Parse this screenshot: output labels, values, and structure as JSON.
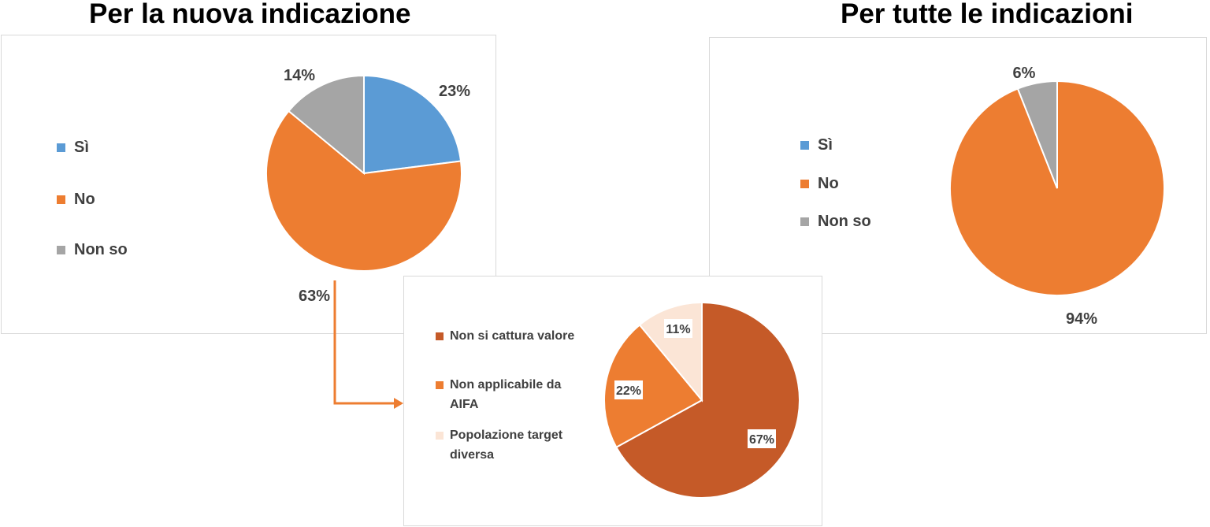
{
  "titles": {
    "left": "Per la nuova indicazione",
    "right": "Per tutte le indicazioni"
  },
  "chart_data": [
    {
      "type": "pie",
      "title": "Per la nuova indicazione",
      "categories": [
        "Sì",
        "No",
        "Non so"
      ],
      "values": [
        23,
        63,
        14
      ],
      "value_labels": [
        "23%",
        "63%",
        "14%"
      ],
      "colors": [
        "#5B9BD5",
        "#ED7D31",
        "#A5A5A5"
      ],
      "legend": "left"
    },
    {
      "type": "pie",
      "title": "Per tutte le indicazioni",
      "categories": [
        "Sì",
        "No",
        "Non so"
      ],
      "values": [
        0,
        94,
        6
      ],
      "value_labels": [
        "",
        "94%",
        "6%"
      ],
      "colors": [
        "#5B9BD5",
        "#ED7D31",
        "#A5A5A5"
      ],
      "legend": "left"
    },
    {
      "type": "pie",
      "title": "",
      "categories": [
        "Non si cattura valore",
        "Non applicabile da AIFA",
        "Popolazione target diversa"
      ],
      "values": [
        67,
        22,
        11
      ],
      "value_labels": [
        "67%",
        "22%",
        "11%"
      ],
      "colors": [
        "#C55A28",
        "#ED7D31",
        "#FBE5D6"
      ],
      "legend": "left"
    }
  ]
}
